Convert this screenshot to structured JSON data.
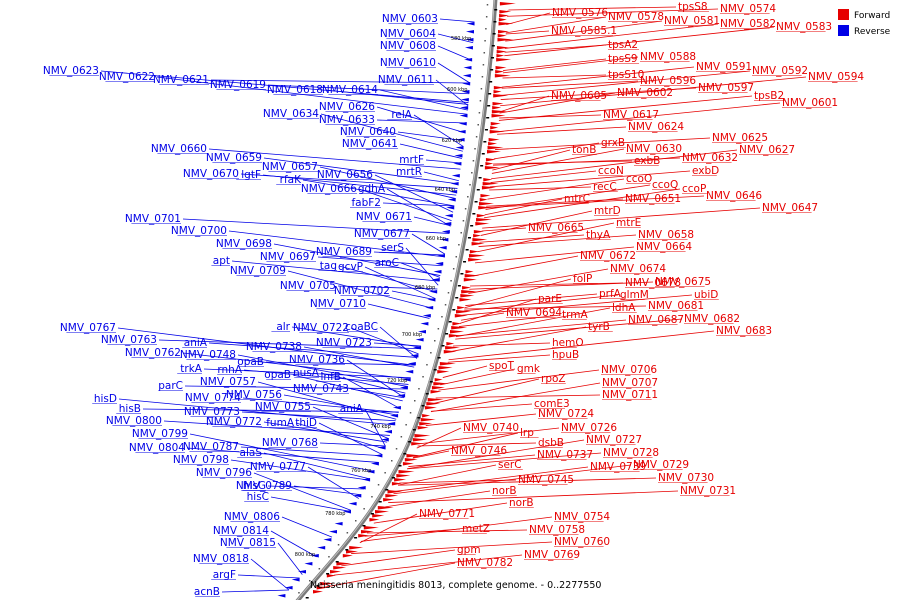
{
  "legend": {
    "forward_label": "Forward",
    "reverse_label": "Reverse",
    "forward_color": "#e60000",
    "reverse_color": "#0000e6"
  },
  "caption": "Neisseria meningitidis 8013, complete genome. - 0..2277550",
  "ticks": [
    "580 kbp",
    "600 kbp",
    "620 kbp",
    "640 kbp",
    "660 kbp",
    "680 kbp",
    "700 kbp",
    "720 kbp",
    "740 kbp",
    "760 kbp",
    "780 kbp",
    "800 kbp"
  ],
  "reverse_genes": [
    "NMV_0603",
    "NMV_0604",
    "NMV_0608",
    "NMV_0610",
    "NMV_0611",
    "NMV_0623",
    "NMV_0622",
    "NMV_0621",
    "NMV_0619",
    "NMV_0618",
    "NMV_0614",
    "NMV_0626",
    "relA",
    "NMV_0634",
    "NMV_0633",
    "NMV_0640",
    "NMV_0641",
    "NMV_0660",
    "NMV_0659",
    "NMV_0657",
    "NMV_0656",
    "mrtF",
    "mrtR",
    "NMV_0670",
    "lgtF",
    "rfaK",
    "NMV_0666",
    "gdhA",
    "fabF2",
    "NMV_0671",
    "NMV_0701",
    "NMV_0677",
    "NMV_0700",
    "NMV_0698",
    "serS",
    "NMV_0689",
    "NMV_0697",
    "aroC",
    "apt",
    "tag",
    "gcvP",
    "NMV_0709",
    "NMV_0705",
    "NMV_0702",
    "NMV_0710",
    "alr",
    "NMV_0722",
    "coaBC",
    "NMV_0767",
    "NMV_0723",
    "NMV_0763",
    "aniA",
    "NMV_0738",
    "NMV_0762",
    "NMV_0748",
    "NMV_0736",
    "opaB",
    "trkA",
    "rnhA",
    "nusA",
    "opaB",
    "infB",
    "NMV_0757",
    "parC",
    "NMV_0743",
    "NMV_0774",
    "NMV_0756",
    "hisD",
    "NMV_0755",
    "aniA",
    "hisB",
    "NMV_0773",
    "NMV_0800",
    "NMV_0772",
    "fumA",
    "thiD",
    "NMV_0799",
    "NMV_0768",
    "NMV_0787",
    "NMV_0804",
    "NMV_0798",
    "alaS",
    "NMV_0777",
    "NMV_0796",
    "hisG",
    "NMV_0789",
    "hisC",
    "NMV_0806",
    "NMV_0814",
    "NMV_0815",
    "NMV_0818",
    "argF",
    "acnB"
  ],
  "forward_genes": [
    "tpsS8",
    "NMV_0574",
    "NMV_0576",
    "NMV_0578",
    "NMV_0581",
    "NMV_0582",
    "NMV_0583",
    "NMV_0585.1",
    "tpsA2",
    "tpsS9",
    "NMV_0588",
    "NMV_0591",
    "NMV_0592",
    "NMV_0594",
    "tpsS10",
    "NMV_0596",
    "NMV_0597",
    "NMV_0605",
    "NMV_0602",
    "tpsB2",
    "NMV_0601",
    "NMV_0617",
    "NMV_0624",
    "NMV_0625",
    "grxB",
    "tonB",
    "NMV_0630",
    "NMV_0627",
    "exbB",
    "NMV_0632",
    "ccoN",
    "exbD",
    "ccoO",
    "ccoQ",
    "ccoP",
    "recC",
    "NMV_0651",
    "NMV_0646",
    "mtrC",
    "NMV_0647",
    "mtrD",
    "mtrE",
    "NMV_0665",
    "thyA",
    "NMV_0658",
    "NMV_0664",
    "NMV_0672",
    "NMV_0674",
    "folP",
    "NMV_0678",
    "NMV_0675",
    "prfA",
    "glmM",
    "ubiD",
    "parE",
    "ldhA",
    "NMV_0681",
    "NMV_0694",
    "trmA",
    "NMV_0687",
    "NMV_0682",
    "tyrB",
    "NMV_0683",
    "hemO",
    "hpuB",
    "spoT",
    "gmk",
    "NMV_0706",
    "rpoZ",
    "NMV_0707",
    "NMV_0711",
    "comE3",
    "NMV_0724",
    "NMV_0726",
    "NMV_0740",
    "lrp",
    "NMV_0727",
    "dsbB",
    "NMV_0746",
    "NMV_0737",
    "NMV_0728",
    "serC",
    "NMV_0739",
    "NMV_0729",
    "NMV_0745",
    "NMV_0730",
    "NMV_0731",
    "norB",
    "norB",
    "NMV_0754",
    "NMV_0771",
    "NMV_0758",
    "metZ",
    "NMV_0760",
    "gpm",
    "NMV_0769",
    "NMV_0782"
  ]
}
